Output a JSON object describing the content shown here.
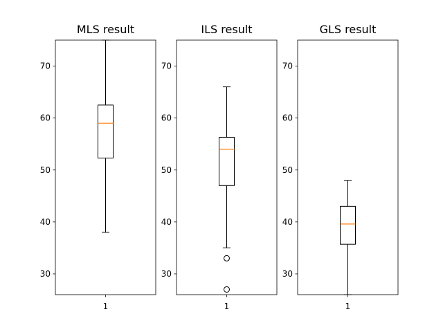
{
  "chart_data": [
    {
      "type": "box",
      "title": "MLS result",
      "categories": [
        "1"
      ],
      "yticks": [
        "30",
        "40",
        "50",
        "60",
        "70"
      ],
      "ylim": [
        26,
        75
      ],
      "box": {
        "whisker_low": 38,
        "q1": 52.3,
        "median": 59,
        "q3": 62.5,
        "whisker_high": 75
      },
      "outliers": [],
      "median_color": "#ff7f0e"
    },
    {
      "type": "box",
      "title": "ILS result",
      "categories": [
        "1"
      ],
      "yticks": [
        "30",
        "40",
        "50",
        "60",
        "70"
      ],
      "ylim": [
        26,
        75
      ],
      "box": {
        "whisker_low": 35,
        "q1": 47,
        "median": 54,
        "q3": 56.3,
        "whisker_high": 66
      },
      "outliers": [
        33,
        27
      ],
      "median_color": "#ff7f0e"
    },
    {
      "type": "box",
      "title": "GLS result",
      "categories": [
        "1"
      ],
      "yticks": [
        "30",
        "40",
        "50",
        "60",
        "70"
      ],
      "ylim": [
        26,
        75
      ],
      "box": {
        "whisker_low": 26,
        "q1": 35.7,
        "median": 39.6,
        "q3": 43,
        "whisker_high": 48
      },
      "outliers": [],
      "median_color": "#ff7f0e"
    }
  ]
}
